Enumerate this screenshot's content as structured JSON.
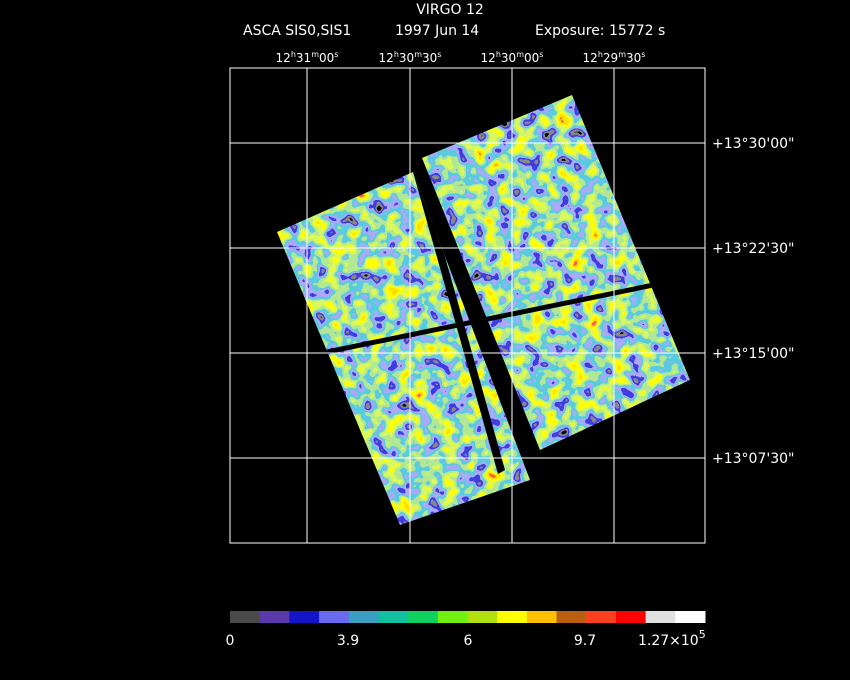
{
  "header": {
    "title": "VIRGO 12",
    "instrument": "ASCA SIS0,SIS1",
    "date": "1997 Jun 14",
    "exposure": "Exposure: 15772 s"
  },
  "ra_labels": [
    [
      "12",
      "h",
      "31",
      "m",
      "00",
      "s"
    ],
    [
      "12",
      "h",
      "30",
      "m",
      "30",
      "s"
    ],
    [
      "12",
      "h",
      "30",
      "m",
      "00",
      "s"
    ],
    [
      "12",
      "h",
      "29",
      "m",
      "30",
      "s"
    ]
  ],
  "dec_labels": [
    "+13°30'00\"",
    "+13°22'30\"",
    "+13°15'00\"",
    "+13°07'30\""
  ],
  "colorbar": {
    "colors": [
      "#4a4a4a",
      "#5a3aa8",
      "#1414c8",
      "#6a6af0",
      "#3a9ec0",
      "#10c0a0",
      "#10d060",
      "#70f010",
      "#b0e010",
      "#ffff00",
      "#ffc000",
      "#b86010",
      "#ff4020",
      "#ff0000",
      "#e0e0e0",
      "#ffffff"
    ],
    "labels": [
      "0",
      "3.9",
      "6",
      "9.7"
    ],
    "max_label": [
      "1.27×10",
      "5"
    ]
  }
}
